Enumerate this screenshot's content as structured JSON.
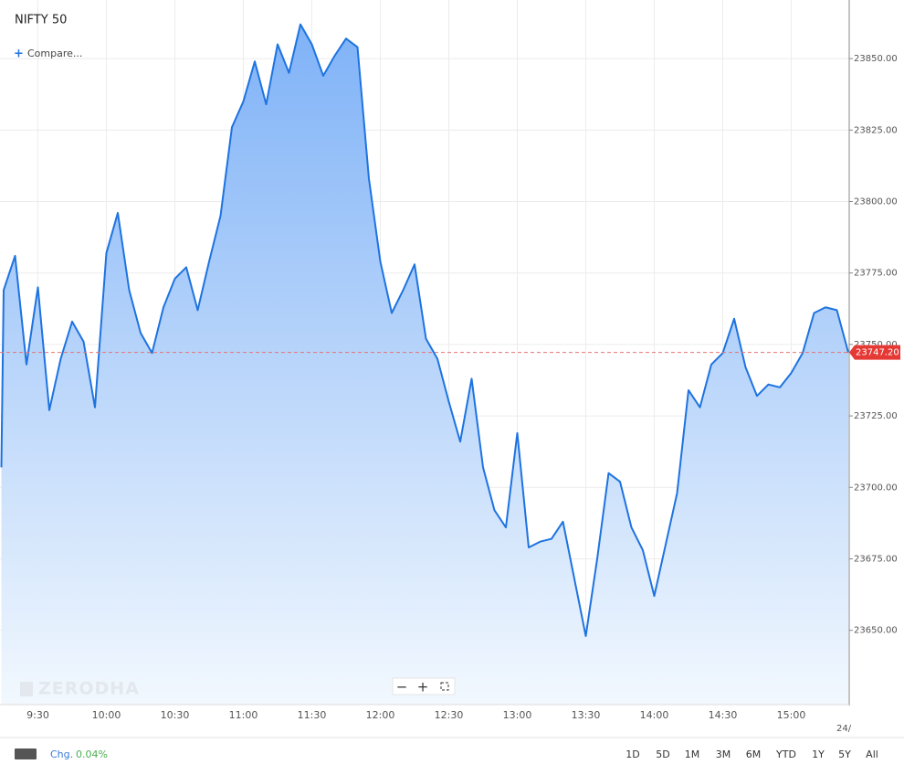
{
  "chart_data": {
    "type": "area",
    "title": "NIFTY 50",
    "compare": "Compare...",
    "watermark": "ZERODHA",
    "color": "#1e73e0",
    "x": [
      554,
      555,
      560,
      565,
      570,
      575,
      580,
      585,
      590,
      595,
      600,
      605,
      610,
      615,
      620,
      625,
      630,
      635,
      640,
      645,
      650,
      655,
      660,
      665,
      670,
      675,
      680,
      685,
      690,
      695,
      700,
      705,
      710,
      715,
      720,
      725,
      730,
      735,
      740,
      745,
      750,
      755,
      760,
      765,
      770,
      775,
      780,
      785,
      790,
      795,
      800,
      805,
      810,
      815,
      820,
      825,
      830,
      835,
      840,
      845,
      850,
      855,
      860,
      865,
      870,
      875,
      880,
      885,
      890,
      895,
      900,
      905,
      910,
      915,
      920,
      925
    ],
    "values": [
      23707,
      23769,
      23781,
      23743,
      23770,
      23727,
      23745,
      23758,
      23751,
      23728,
      23782,
      23796,
      23769,
      23754,
      23747,
      23763,
      23773,
      23777,
      23762,
      23779,
      23795,
      23826,
      23835,
      23849,
      23834,
      23855,
      23845,
      23862,
      23855,
      23844,
      23851,
      23857,
      23854,
      23808,
      23779,
      23761,
      23769,
      23778,
      23752,
      23745,
      23730,
      23716,
      23738,
      23707,
      23692,
      23686,
      23719,
      23679,
      23681,
      23682,
      23688,
      23668,
      23648,
      23675,
      23705,
      23702,
      23686,
      23678,
      23662,
      23680,
      23698,
      23734,
      23728,
      23743,
      23747,
      23759,
      23742,
      23732,
      23736,
      23735,
      23740,
      23747,
      23761,
      23763,
      23762,
      23747.2
    ],
    "last_price": {
      "value": 23747.2,
      "label": "23747.20"
    },
    "xlim": [
      553.4,
      925.4
    ],
    "xticks": [
      {
        "value": 570,
        "label": "9:30"
      },
      {
        "value": 600,
        "label": "10:00"
      },
      {
        "value": 630,
        "label": "10:30"
      },
      {
        "value": 660,
        "label": "11:00"
      },
      {
        "value": 690,
        "label": "11:30"
      },
      {
        "value": 720,
        "label": "12:00"
      },
      {
        "value": 750,
        "label": "12:30"
      },
      {
        "value": 780,
        "label": "13:00"
      },
      {
        "value": 810,
        "label": "13:30"
      },
      {
        "value": 840,
        "label": "14:00"
      },
      {
        "value": 870,
        "label": "14:30"
      },
      {
        "value": 900,
        "label": "15:00"
      }
    ],
    "date_label": "24/",
    "ylim": [
      23624,
      23870.5
    ],
    "yticks": [
      {
        "value": 23650,
        "label": "23650.00"
      },
      {
        "value": 23675,
        "label": "23675.00"
      },
      {
        "value": 23700,
        "label": "23700.00"
      },
      {
        "value": 23725,
        "label": "23725.00"
      },
      {
        "value": 23750,
        "label": "23750.00"
      },
      {
        "value": 23775,
        "label": "23775.00"
      },
      {
        "value": 23800,
        "label": "23800.00"
      },
      {
        "value": 23825,
        "label": "23825.00"
      },
      {
        "value": 23850,
        "label": "23850.00"
      }
    ],
    "grid": true
  },
  "footer": {
    "change_label": "Chg.",
    "change": "0.04%",
    "ranges": [
      "1D",
      "5D",
      "1M",
      "3M",
      "6M",
      "YTD",
      "1Y",
      "5Y",
      "All"
    ]
  }
}
